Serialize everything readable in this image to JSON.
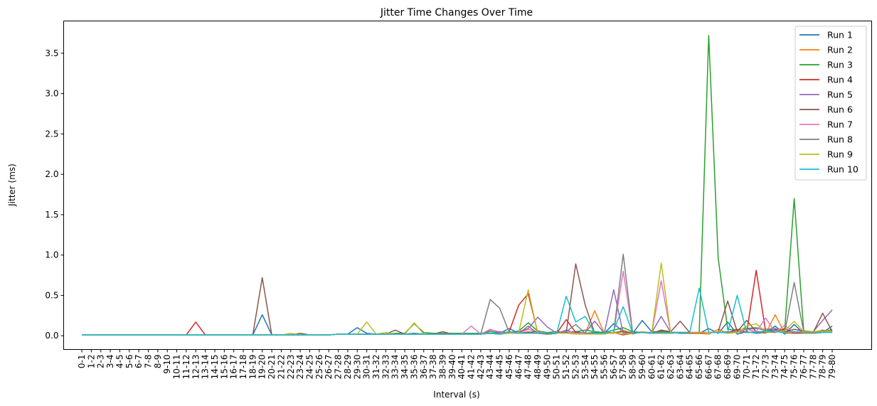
{
  "chart_data": {
    "type": "line",
    "title": "Jitter Time Changes Over Time",
    "xlabel": "Interval (s)",
    "ylabel": "Jitter (ms)",
    "ylim": [
      -0.17,
      3.9
    ],
    "yticks": [
      0.0,
      0.5,
      1.0,
      1.5,
      2.0,
      2.5,
      3.0,
      3.5
    ],
    "ytick_labels": [
      "0.0",
      "0.5",
      "1.0",
      "1.5",
      "2.0",
      "2.5",
      "3.0",
      "3.5"
    ],
    "grid": false,
    "legend_position": "top-right",
    "categories": [
      "0-1",
      "1-2",
      "2-3",
      "3-4",
      "4-5",
      "5-6",
      "6-7",
      "7-8",
      "8-9",
      "9-10",
      "10-11",
      "11-12",
      "12-13",
      "13-14",
      "14-15",
      "15-16",
      "16-17",
      "17-18",
      "18-19",
      "19-20",
      "20-21",
      "21-22",
      "22-23",
      "23-24",
      "24-25",
      "25-26",
      "26-27",
      "27-28",
      "28-29",
      "29-30",
      "30-31",
      "31-32",
      "32-33",
      "33-34",
      "34-35",
      "35-36",
      "36-37",
      "37-38",
      "38-39",
      "39-40",
      "40-41",
      "41-42",
      "42-43",
      "43-44",
      "44-45",
      "45-46",
      "46-47",
      "47-48",
      "48-49",
      "49-50",
      "50-51",
      "51-52",
      "52-53",
      "53-54",
      "54-55",
      "55-56",
      "56-57",
      "57-58",
      "58-59",
      "59-60",
      "60-61",
      "61-62",
      "62-63",
      "63-64",
      "64-65",
      "65-66",
      "66-67",
      "67-68",
      "68-69",
      "69-70",
      "70-71",
      "71-72",
      "72-73",
      "73-74",
      "74-75",
      "75-76",
      "76-77",
      "77-78",
      "78-79",
      "79-80"
    ],
    "series": [
      {
        "name": "Run 1",
        "color": "#1f77b4",
        "values": [
          0.01,
          0.01,
          0.01,
          0.01,
          0.01,
          0.01,
          0.01,
          0.01,
          0.01,
          0.01,
          0.01,
          0.01,
          0.01,
          0.01,
          0.01,
          0.01,
          0.01,
          0.01,
          0.01,
          0.26,
          0.01,
          0.01,
          0.01,
          0.01,
          0.01,
          0.01,
          0.01,
          0.02,
          0.02,
          0.1,
          0.03,
          0.02,
          0.02,
          0.02,
          0.02,
          0.03,
          0.02,
          0.02,
          0.02,
          0.02,
          0.03,
          0.02,
          0.02,
          0.03,
          0.03,
          0.09,
          0.03,
          0.04,
          0.06,
          0.02,
          0.03,
          0.04,
          0.05,
          0.03,
          0.04,
          0.03,
          0.15,
          0.05,
          0.03,
          0.19,
          0.05,
          0.05,
          0.04,
          0.03,
          0.03,
          0.03,
          0.09,
          0.03,
          0.17,
          0.02,
          0.05,
          0.03,
          0.04,
          0.12,
          0.02,
          0.14,
          0.03,
          0.03,
          0.04,
          0.12
        ]
      },
      {
        "name": "Run 2",
        "color": "#ff7f0e",
        "values": [
          0.01,
          0.01,
          0.01,
          0.01,
          0.01,
          0.01,
          0.01,
          0.01,
          0.01,
          0.01,
          0.01,
          0.01,
          0.01,
          0.01,
          0.01,
          0.01,
          0.01,
          0.01,
          0.01,
          0.01,
          0.01,
          0.01,
          0.01,
          0.01,
          0.01,
          0.01,
          0.01,
          0.02,
          0.02,
          0.02,
          0.02,
          0.02,
          0.02,
          0.02,
          0.02,
          0.02,
          0.02,
          0.02,
          0.02,
          0.02,
          0.02,
          0.02,
          0.02,
          0.03,
          0.02,
          0.03,
          0.03,
          0.05,
          0.03,
          0.02,
          0.03,
          0.05,
          0.03,
          0.03,
          0.31,
          0.03,
          0.03,
          0.07,
          0.02,
          0.05,
          0.03,
          0.03,
          0.03,
          0.04,
          0.03,
          0.03,
          0.02,
          0.08,
          0.03,
          0.05,
          0.04,
          0.05,
          0.03,
          0.26,
          0.03,
          0.03,
          0.03,
          0.03,
          0.04,
          0.06
        ]
      },
      {
        "name": "Run 3",
        "color": "#2ca02c",
        "values": [
          0.01,
          0.01,
          0.01,
          0.01,
          0.01,
          0.01,
          0.01,
          0.01,
          0.01,
          0.01,
          0.01,
          0.01,
          0.01,
          0.01,
          0.01,
          0.01,
          0.01,
          0.01,
          0.01,
          0.01,
          0.01,
          0.01,
          0.01,
          0.01,
          0.01,
          0.01,
          0.01,
          0.02,
          0.02,
          0.02,
          0.02,
          0.02,
          0.02,
          0.03,
          0.03,
          0.15,
          0.04,
          0.03,
          0.03,
          0.03,
          0.03,
          0.03,
          0.03,
          0.05,
          0.04,
          0.04,
          0.06,
          0.16,
          0.06,
          0.04,
          0.05,
          0.04,
          0.05,
          0.07,
          0.05,
          0.04,
          0.07,
          0.1,
          0.05,
          0.04,
          0.04,
          0.06,
          0.04,
          0.04,
          0.04,
          0.03,
          3.72,
          0.96,
          0.08,
          0.07,
          0.09,
          0.1,
          0.06,
          0.08,
          0.07,
          1.7,
          0.06,
          0.05,
          0.04,
          0.08
        ]
      },
      {
        "name": "Run 4",
        "color": "#d62728",
        "values": [
          0.01,
          0.01,
          0.01,
          0.01,
          0.01,
          0.01,
          0.01,
          0.01,
          0.01,
          0.01,
          0.01,
          0.01,
          0.17,
          0.01,
          0.01,
          0.01,
          0.01,
          0.01,
          0.01,
          0.01,
          0.01,
          0.01,
          0.01,
          0.01,
          0.01,
          0.01,
          0.01,
          0.02,
          0.02,
          0.02,
          0.02,
          0.02,
          0.02,
          0.02,
          0.02,
          0.02,
          0.02,
          0.02,
          0.02,
          0.02,
          0.02,
          0.02,
          0.02,
          0.03,
          0.02,
          0.05,
          0.38,
          0.52,
          0.04,
          0.02,
          0.03,
          0.2,
          0.04,
          0.03,
          0.03,
          0.03,
          0.04,
          0.01,
          0.03,
          0.04,
          0.03,
          0.04,
          0.04,
          0.04,
          0.03,
          0.03,
          0.04,
          0.04,
          0.04,
          0.08,
          0.04,
          0.81,
          0.05,
          0.04,
          0.09,
          0.03,
          0.04,
          0.04,
          0.07,
          0.04
        ]
      },
      {
        "name": "Run 5",
        "color": "#9467bd",
        "values": [
          0.01,
          0.01,
          0.01,
          0.01,
          0.01,
          0.01,
          0.01,
          0.01,
          0.01,
          0.01,
          0.01,
          0.01,
          0.01,
          0.01,
          0.01,
          0.01,
          0.01,
          0.01,
          0.01,
          0.01,
          0.01,
          0.01,
          0.01,
          0.01,
          0.01,
          0.01,
          0.01,
          0.02,
          0.02,
          0.02,
          0.02,
          0.02,
          0.02,
          0.02,
          0.02,
          0.02,
          0.02,
          0.02,
          0.02,
          0.02,
          0.02,
          0.02,
          0.02,
          0.07,
          0.05,
          0.04,
          0.05,
          0.09,
          0.23,
          0.11,
          0.03,
          0.07,
          0.03,
          0.04,
          0.18,
          0.03,
          0.57,
          0.03,
          0.04,
          0.04,
          0.04,
          0.24,
          0.04,
          0.04,
          0.04,
          0.04,
          0.04,
          0.04,
          0.05,
          0.04,
          0.08,
          0.09,
          0.08,
          0.09,
          0.04,
          0.05,
          0.05,
          0.05,
          0.19,
          0.32
        ]
      },
      {
        "name": "Run 6",
        "color": "#8c564b",
        "values": [
          0.01,
          0.01,
          0.01,
          0.01,
          0.01,
          0.01,
          0.01,
          0.01,
          0.01,
          0.01,
          0.01,
          0.01,
          0.01,
          0.01,
          0.01,
          0.01,
          0.01,
          0.01,
          0.01,
          0.72,
          0.01,
          0.01,
          0.01,
          0.03,
          0.01,
          0.01,
          0.01,
          0.02,
          0.02,
          0.02,
          0.02,
          0.02,
          0.02,
          0.07,
          0.02,
          0.02,
          0.02,
          0.02,
          0.05,
          0.02,
          0.02,
          0.02,
          0.02,
          0.03,
          0.02,
          0.04,
          0.03,
          0.04,
          0.03,
          0.02,
          0.03,
          0.04,
          0.89,
          0.38,
          0.03,
          0.03,
          0.04,
          0.05,
          0.04,
          0.04,
          0.03,
          0.07,
          0.05,
          0.18,
          0.04,
          0.04,
          0.04,
          0.05,
          0.43,
          0.05,
          0.19,
          0.05,
          0.05,
          0.07,
          0.05,
          0.08,
          0.06,
          0.04,
          0.28,
          0.05
        ]
      },
      {
        "name": "Run 7",
        "color": "#e377c2",
        "values": [
          0.01,
          0.01,
          0.01,
          0.01,
          0.01,
          0.01,
          0.01,
          0.01,
          0.01,
          0.01,
          0.01,
          0.01,
          0.01,
          0.01,
          0.01,
          0.01,
          0.01,
          0.01,
          0.01,
          0.01,
          0.01,
          0.01,
          0.01,
          0.01,
          0.01,
          0.01,
          0.01,
          0.02,
          0.02,
          0.02,
          0.02,
          0.02,
          0.02,
          0.02,
          0.02,
          0.02,
          0.02,
          0.02,
          0.02,
          0.02,
          0.02,
          0.12,
          0.02,
          0.08,
          0.04,
          0.03,
          0.03,
          0.08,
          0.05,
          0.03,
          0.03,
          0.05,
          0.03,
          0.03,
          0.03,
          0.03,
          0.04,
          0.8,
          0.03,
          0.04,
          0.03,
          0.68,
          0.03,
          0.04,
          0.04,
          0.04,
          0.04,
          0.04,
          0.04,
          0.04,
          0.08,
          0.05,
          0.22,
          0.04,
          0.13,
          0.04,
          0.05,
          0.05,
          0.06,
          0.05
        ]
      },
      {
        "name": "Run 8",
        "color": "#7f7f7f",
        "values": [
          0.01,
          0.01,
          0.01,
          0.01,
          0.01,
          0.01,
          0.01,
          0.01,
          0.01,
          0.01,
          0.01,
          0.01,
          0.01,
          0.01,
          0.01,
          0.01,
          0.01,
          0.01,
          0.01,
          0.01,
          0.01,
          0.01,
          0.01,
          0.01,
          0.01,
          0.01,
          0.01,
          0.02,
          0.02,
          0.02,
          0.02,
          0.02,
          0.02,
          0.02,
          0.02,
          0.02,
          0.02,
          0.02,
          0.02,
          0.02,
          0.02,
          0.02,
          0.02,
          0.45,
          0.34,
          0.04,
          0.03,
          0.12,
          0.03,
          0.03,
          0.03,
          0.05,
          0.14,
          0.03,
          0.03,
          0.03,
          0.04,
          1.01,
          0.03,
          0.04,
          0.04,
          0.04,
          0.04,
          0.04,
          0.04,
          0.04,
          0.04,
          0.04,
          0.04,
          0.05,
          0.04,
          0.04,
          0.04,
          0.05,
          0.04,
          0.66,
          0.05,
          0.05,
          0.06,
          0.05
        ]
      },
      {
        "name": "Run 9",
        "color": "#bcbd22",
        "values": [
          0.01,
          0.01,
          0.01,
          0.01,
          0.01,
          0.01,
          0.01,
          0.01,
          0.01,
          0.01,
          0.01,
          0.01,
          0.01,
          0.01,
          0.01,
          0.01,
          0.01,
          0.01,
          0.01,
          0.01,
          0.01,
          0.01,
          0.03,
          0.01,
          0.01,
          0.01,
          0.01,
          0.02,
          0.02,
          0.02,
          0.17,
          0.02,
          0.04,
          0.02,
          0.02,
          0.16,
          0.02,
          0.02,
          0.02,
          0.02,
          0.02,
          0.02,
          0.02,
          0.03,
          0.02,
          0.03,
          0.04,
          0.57,
          0.03,
          0.03,
          0.03,
          0.03,
          0.02,
          0.02,
          0.02,
          0.02,
          0.04,
          0.02,
          0.03,
          0.04,
          0.03,
          0.9,
          0.03,
          0.04,
          0.04,
          0.04,
          0.04,
          0.05,
          0.03,
          0.04,
          0.12,
          0.15,
          0.05,
          0.05,
          0.06,
          0.18,
          0.05,
          0.05,
          0.06,
          0.05
        ]
      },
      {
        "name": "Run 10",
        "color": "#17becf",
        "values": [
          0.01,
          0.01,
          0.01,
          0.01,
          0.01,
          0.01,
          0.01,
          0.01,
          0.01,
          0.01,
          0.01,
          0.01,
          0.01,
          0.01,
          0.01,
          0.01,
          0.01,
          0.01,
          0.01,
          0.01,
          0.01,
          0.01,
          0.01,
          0.01,
          0.01,
          0.01,
          0.01,
          0.02,
          0.02,
          0.02,
          0.02,
          0.02,
          0.02,
          0.02,
          0.02,
          0.02,
          0.02,
          0.02,
          0.02,
          0.02,
          0.02,
          0.02,
          0.02,
          0.03,
          0.02,
          0.05,
          0.03,
          0.03,
          0.03,
          0.03,
          0.03,
          0.49,
          0.17,
          0.24,
          0.03,
          0.03,
          0.07,
          0.36,
          0.03,
          0.04,
          0.03,
          0.04,
          0.03,
          0.04,
          0.04,
          0.59,
          0.04,
          0.04,
          0.04,
          0.5,
          0.04,
          0.04,
          0.06,
          0.05,
          0.04,
          0.05,
          0.04,
          0.04,
          0.04,
          0.04
        ]
      }
    ]
  }
}
